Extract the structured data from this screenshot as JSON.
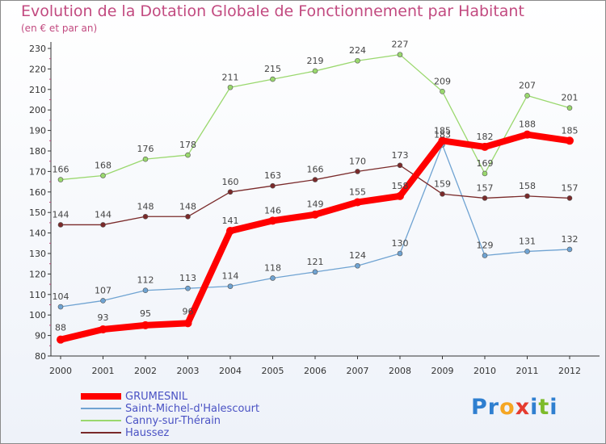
{
  "header": {
    "title": "Evolution de la Dotation Globale de Fonctionnement par Habitant",
    "subtitle": "(en € et par an)"
  },
  "logo": {
    "text": "Proxiti",
    "letters": [
      {
        "ch": "P",
        "color": "#2f7fd0"
      },
      {
        "ch": "r",
        "color": "#2f7fd0"
      },
      {
        "ch": "o",
        "color": "#f5a623"
      },
      {
        "ch": "x",
        "color": "#e53b2f"
      },
      {
        "ch": "i",
        "color": "#2f7fd0"
      },
      {
        "ch": "t",
        "color": "#7dbb2b"
      },
      {
        "ch": "i",
        "color": "#2f7fd0"
      }
    ]
  },
  "chart_data": {
    "type": "line",
    "title": "Evolution de la Dotation Globale de Fonctionnement par Habitant",
    "subtitle": "(en € et par an)",
    "x": [
      "2000",
      "2001",
      "2002",
      "2003",
      "2004",
      "2005",
      "2006",
      "2007",
      "2008",
      "2009",
      "2010",
      "2011",
      "2012"
    ],
    "ylim": [
      80,
      230
    ],
    "yticks": [
      80,
      90,
      100,
      110,
      120,
      130,
      140,
      150,
      160,
      170,
      180,
      190,
      200,
      210,
      220,
      230
    ],
    "grid": false,
    "legend_position": "bottom-left",
    "series": [
      {
        "name": "GRUMESNIL",
        "color": "#ff0000",
        "values": [
          88,
          93,
          95,
          96,
          141,
          146,
          149,
          155,
          158,
          185,
          182,
          188,
          185
        ]
      },
      {
        "name": "Saint-Michel-d'Halescourt",
        "color": "#6fa3d2",
        "values": [
          104,
          107,
          112,
          113,
          114,
          118,
          121,
          124,
          130,
          183,
          129,
          131,
          132
        ]
      },
      {
        "name": "Canny-sur-Thérain",
        "color": "#9ad86e",
        "values": [
          166,
          168,
          176,
          178,
          211,
          215,
          219,
          224,
          227,
          209,
          169,
          207,
          201
        ]
      },
      {
        "name": "Haussez",
        "color": "#7a2a2a",
        "values": [
          144,
          144,
          148,
          148,
          160,
          163,
          166,
          170,
          173,
          159,
          157,
          158,
          157
        ]
      }
    ]
  }
}
